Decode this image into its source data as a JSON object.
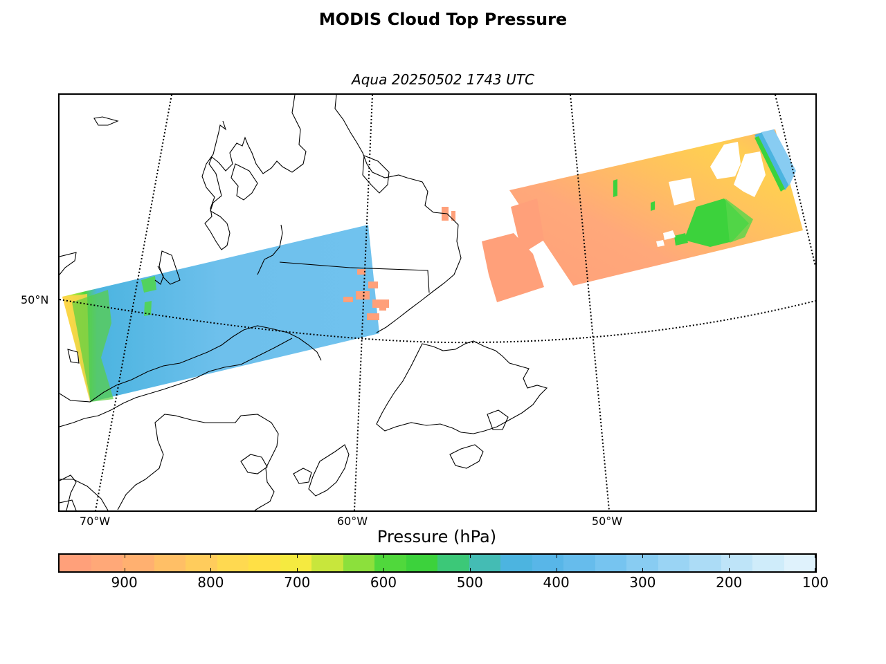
{
  "figure": {
    "title": "MODIS Cloud Top Pressure",
    "subtitle": "Aqua 20250502 1743 UTC"
  },
  "map": {
    "projection": "lambert-conformal",
    "lat_labels": [
      "50°N"
    ],
    "lon_labels": [
      "70°W",
      "60°W",
      "50°W"
    ],
    "graticule_style": "dotted",
    "coastline_color": "#000000"
  },
  "colorbar": {
    "label": "Pressure (hPa)",
    "orientation": "horizontal",
    "vmin": 100,
    "vmax": 975,
    "direction": "high-pressure-left",
    "tick_labels": [
      "900",
      "800",
      "700",
      "600",
      "500",
      "400",
      "300",
      "200",
      "100"
    ],
    "tick_values": [
      900,
      800,
      700,
      600,
      500,
      400,
      300,
      200,
      100
    ],
    "colors": [
      "#ffa07a",
      "#ffa878",
      "#ffb070",
      "#ffbf66",
      "#ffcc5c",
      "#ffd950",
      "#ffe045",
      "#f5ea40",
      "#c8e63c",
      "#8ce03c",
      "#50d83c",
      "#3cd23c",
      "#3cc878",
      "#44bcb4",
      "#4cb4e0",
      "#58b6e8",
      "#66bcec",
      "#76c4f0",
      "#88ccf2",
      "#9ad4f4",
      "#acdcf6",
      "#bee4f8",
      "#cfecfa",
      "#dff2fc"
    ]
  },
  "swaths": [
    {
      "name": "western swath",
      "dominant_pressure_range_hPa": [
        300,
        400
      ],
      "edge_pressure_range_hPa": [
        500,
        800
      ]
    },
    {
      "name": "eastern swath",
      "dominant_pressure_range_hPa": [
        750,
        975
      ],
      "embedded_pressure_range_hPa": [
        450,
        600
      ],
      "edge_pressure_range_hPa": [
        200,
        400
      ]
    }
  ]
}
